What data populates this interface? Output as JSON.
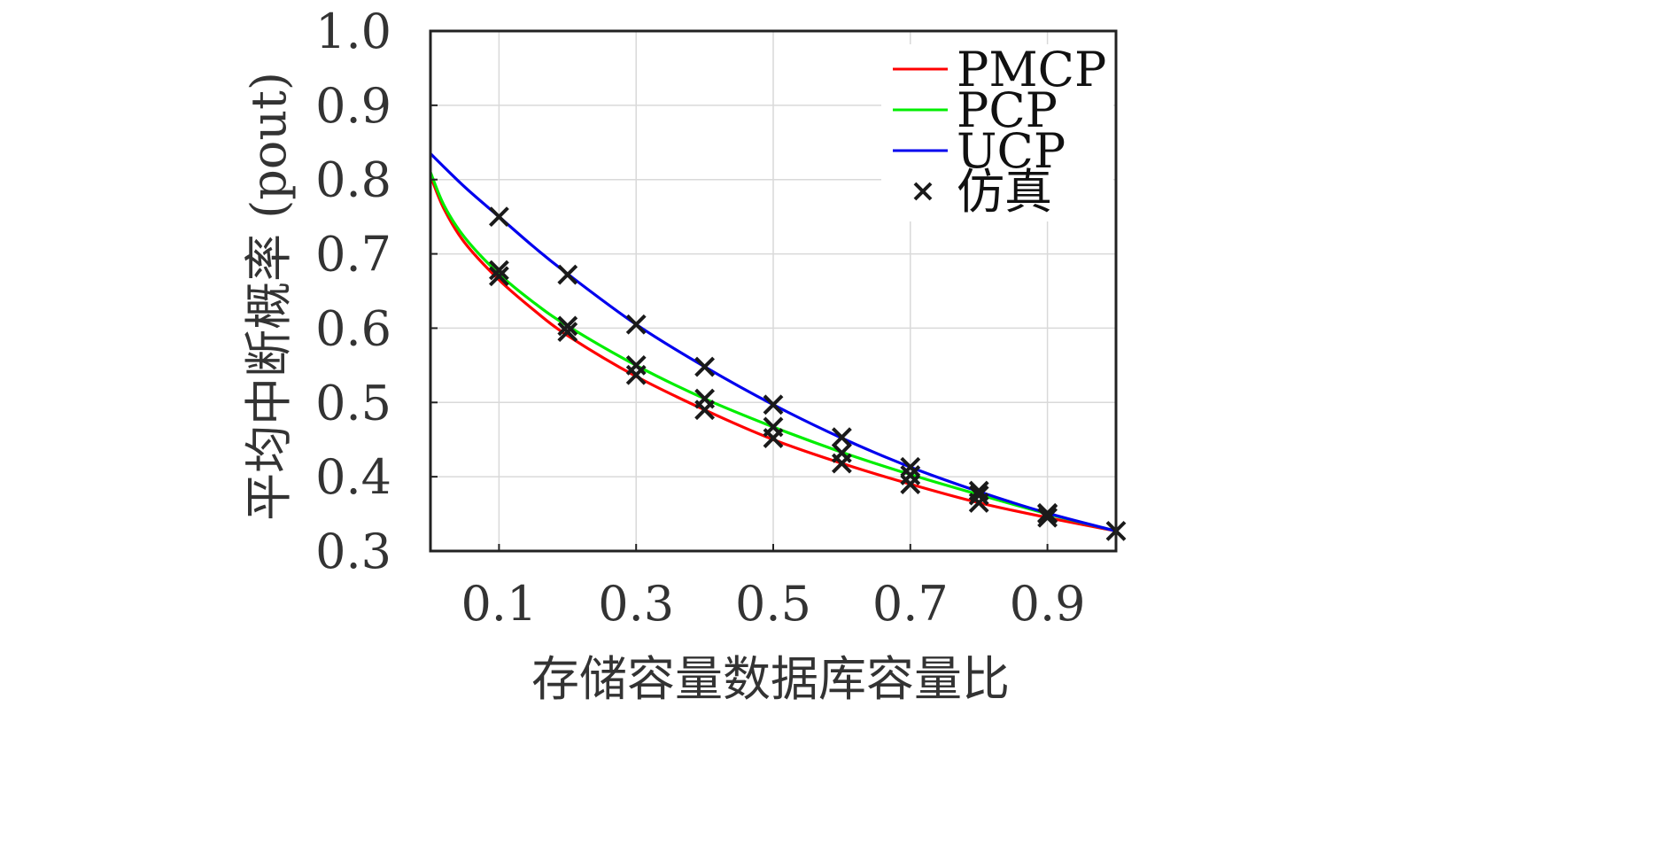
{
  "chart_data": {
    "type": "line",
    "xlabel": "存储容量数据库容量比",
    "ylabel": "平均中断概率 (pout)",
    "xlim": [
      0,
      1.0
    ],
    "ylim": [
      0.3,
      1.0
    ],
    "x_ticks": [
      "0.1",
      "0.3",
      "0.5",
      "0.7",
      "0.9"
    ],
    "x_tick_values": [
      0.1,
      0.3,
      0.5,
      0.7,
      0.9
    ],
    "y_ticks": [
      "0.3",
      "0.4",
      "0.5",
      "0.6",
      "0.7",
      "0.8",
      "0.9",
      "1.0"
    ],
    "y_tick_values": [
      0.3,
      0.4,
      0.5,
      0.6,
      0.7,
      0.8,
      0.9,
      1.0
    ],
    "grid": true,
    "legend_position": "top-right",
    "series": [
      {
        "name": "PMCP",
        "color": "#ff0000",
        "style": "line",
        "x": [
          0.0,
          0.02,
          0.05,
          0.1,
          0.15,
          0.2,
          0.3,
          0.4,
          0.5,
          0.6,
          0.7,
          0.8,
          0.9,
          1.0
        ],
        "values": [
          0.805,
          0.76,
          0.715,
          0.665,
          0.625,
          0.59,
          0.535,
          0.49,
          0.45,
          0.418,
          0.39,
          0.365,
          0.345,
          0.327
        ]
      },
      {
        "name": "PCP",
        "color": "#00ee00",
        "style": "line",
        "x": [
          0.0,
          0.02,
          0.05,
          0.1,
          0.15,
          0.2,
          0.3,
          0.4,
          0.5,
          0.6,
          0.7,
          0.8,
          0.9,
          1.0
        ],
        "values": [
          0.81,
          0.765,
          0.722,
          0.673,
          0.635,
          0.603,
          0.55,
          0.505,
          0.467,
          0.433,
          0.403,
          0.376,
          0.35,
          0.327
        ]
      },
      {
        "name": "UCP",
        "color": "#0000ee",
        "style": "line",
        "x": [
          0.0,
          0.05,
          0.1,
          0.15,
          0.2,
          0.3,
          0.4,
          0.5,
          0.6,
          0.7,
          0.8,
          0.9,
          1.0
        ],
        "values": [
          0.835,
          0.79,
          0.75,
          0.71,
          0.673,
          0.605,
          0.548,
          0.497,
          0.452,
          0.413,
          0.38,
          0.351,
          0.327
        ]
      },
      {
        "name": "仿真",
        "color": "#1a1a1a",
        "style": "marker-x",
        "x": [
          0.1,
          0.1,
          0.1,
          0.2,
          0.2,
          0.2,
          0.3,
          0.3,
          0.3,
          0.4,
          0.4,
          0.4,
          0.5,
          0.5,
          0.5,
          0.6,
          0.6,
          0.6,
          0.7,
          0.7,
          0.7,
          0.8,
          0.8,
          0.8,
          0.9,
          0.9,
          0.9,
          1.0
        ],
        "values": [
          0.75,
          0.678,
          0.67,
          0.672,
          0.603,
          0.595,
          0.605,
          0.55,
          0.537,
          0.548,
          0.505,
          0.49,
          0.497,
          0.467,
          0.452,
          0.453,
          0.432,
          0.418,
          0.413,
          0.402,
          0.39,
          0.381,
          0.375,
          0.365,
          0.351,
          0.35,
          0.345,
          0.327
        ]
      }
    ]
  }
}
